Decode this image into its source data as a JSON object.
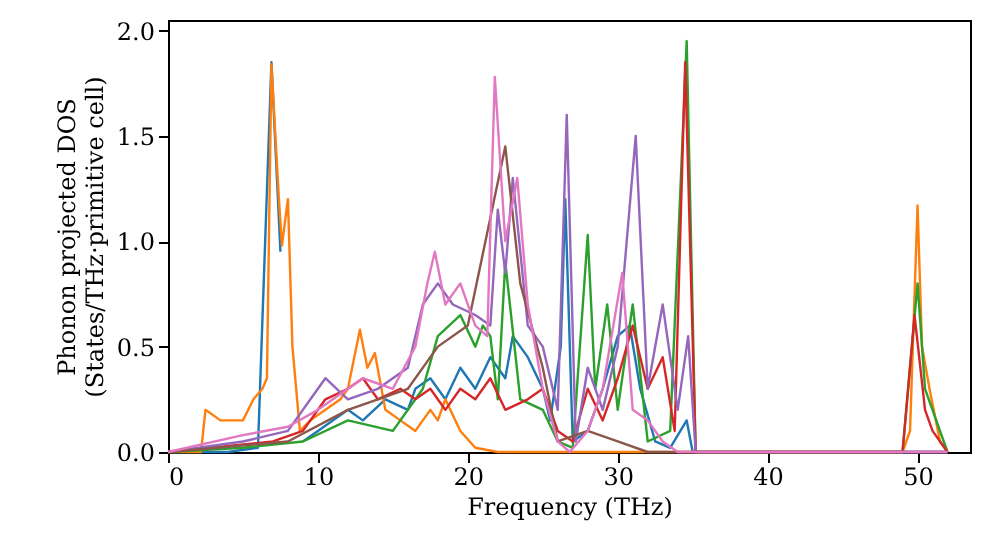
{
  "chart_data": {
    "type": "line",
    "xlabel": "Frequency (THz)",
    "ylabel": "Phonon projected DOS\n(States/THz·primitive cell)",
    "xlim": [
      0,
      53.5
    ],
    "ylim": [
      0,
      2.05
    ],
    "xticks": [
      0,
      10,
      20,
      30,
      40,
      50
    ],
    "yticks": [
      {
        "value": 0,
        "label": "0.0"
      },
      0.5,
      {
        "value": 1,
        "label": "1.0"
      },
      1.5,
      {
        "value": 2,
        "label": "2.0"
      }
    ],
    "grid": false,
    "marker": "none",
    "line_style": "solid",
    "series": [
      {
        "color": "#1f77b4",
        "x": [
          0,
          4,
          6,
          6.9,
          7.5,
          8,
          8.4,
          9,
          10,
          12,
          13,
          14.5,
          16,
          16.5,
          17.5,
          18.5,
          19.5,
          20.5,
          21.5,
          22.5,
          23,
          24,
          25,
          25.5,
          26.2,
          26.5,
          27,
          28,
          29,
          30,
          30.8,
          31.5,
          32.5,
          33.5,
          34.6,
          35,
          52
        ],
        "values": [
          0,
          0,
          0.02,
          1.85,
          0.95,
          null,
          null,
          0.05,
          0.1,
          0.2,
          0.15,
          0.25,
          0.2,
          0.3,
          0.35,
          0.25,
          0.4,
          0.3,
          0.45,
          0.35,
          0.55,
          0.45,
          0.3,
          0.15,
          0.5,
          1.2,
          0.05,
          0.1,
          0.3,
          0.55,
          0.6,
          0.3,
          0.05,
          0.02,
          0.15,
          0,
          0
        ]
      },
      {
        "color": "#ff7f0e",
        "x": [
          0,
          2.2,
          2.5,
          3.5,
          5,
          5.7,
          6.3,
          6.6,
          6.9,
          7.4,
          7.6,
          8,
          8.3,
          8.8,
          9.5,
          10.5,
          11.5,
          12,
          12.8,
          13.3,
          13.8,
          14.5,
          15.5,
          16.5,
          17.5,
          18,
          18.5,
          19.5,
          20.5,
          22,
          49,
          49.5,
          50,
          50.3,
          50.8,
          51.5,
          52
        ],
        "values": [
          0,
          0,
          0.2,
          0.15,
          0.15,
          0.25,
          0.3,
          0.35,
          1.84,
          1.2,
          0.98,
          1.2,
          0.5,
          0.1,
          0.15,
          0.2,
          0.25,
          0.3,
          0.58,
          0.4,
          0.47,
          0.2,
          0.15,
          0.1,
          0.2,
          0.15,
          0.25,
          0.1,
          0.02,
          0,
          0,
          0.1,
          1.17,
          0.5,
          0.3,
          0.05,
          0
        ]
      },
      {
        "color": "#2ca02c",
        "x": [
          0,
          5,
          9,
          12,
          15,
          17,
          18,
          19.5,
          20.5,
          21,
          21.5,
          22,
          22.5,
          23.5,
          25,
          26,
          27,
          28,
          28.5,
          29.3,
          30,
          31,
          32,
          33.5,
          34.6,
          35.2,
          49,
          50,
          50.5,
          52
        ],
        "values": [
          0,
          0.02,
          0.05,
          0.15,
          0.1,
          0.3,
          0.55,
          0.65,
          0.5,
          0.6,
          0.55,
          0.25,
          0.9,
          0.25,
          0.2,
          0.05,
          0.02,
          1.03,
          0.3,
          0.7,
          0.2,
          0.7,
          0.05,
          0.1,
          1.95,
          0,
          0,
          0.8,
          0.3,
          0
        ]
      },
      {
        "color": "#d62728",
        "x": [
          0,
          7,
          9,
          10.5,
          12,
          13,
          14,
          15.5,
          16.5,
          17.5,
          18.5,
          19.5,
          20.5,
          21.5,
          22.5,
          24,
          25,
          26,
          27,
          28,
          29,
          30,
          31,
          32,
          33,
          33.8,
          34.5,
          35.2,
          49,
          49.8,
          50.5,
          51,
          52
        ],
        "values": [
          0,
          0.05,
          0.1,
          0.25,
          0.3,
          0.35,
          0.25,
          0.3,
          0.25,
          0.3,
          0.2,
          0.3,
          0.25,
          0.35,
          0.2,
          0.25,
          0.3,
          0.1,
          0.05,
          0.3,
          0.15,
          0.35,
          0.6,
          0.3,
          0.45,
          0.1,
          1.85,
          0,
          0,
          0.65,
          0.2,
          0.1,
          0
        ]
      },
      {
        "color": "#9467bd",
        "x": [
          0,
          5,
          8,
          9.5,
          10.5,
          12,
          14,
          16,
          17,
          18,
          19,
          20.5,
          21.5,
          22,
          22.5,
          23,
          24,
          25,
          26,
          26.6,
          27.2,
          28,
          29,
          30,
          31.2,
          32,
          33,
          34,
          34.7,
          35.2,
          52
        ],
        "values": [
          0,
          0.05,
          0.1,
          0.25,
          0.35,
          0.25,
          0.3,
          0.4,
          0.7,
          0.8,
          0.7,
          0.65,
          0.6,
          1.15,
          0.85,
          1.3,
          0.6,
          0.5,
          0.2,
          1.6,
          0.05,
          0.4,
          0.2,
          0.5,
          1.5,
          0.3,
          0.7,
          0.2,
          0.55,
          0,
          0
        ]
      },
      {
        "color": "#8c564b",
        "x": [
          0,
          8,
          12,
          16,
          18,
          20,
          22.5,
          23.5,
          25,
          26,
          28,
          30,
          32,
          52
        ],
        "values": [
          0,
          0.05,
          0.2,
          0.3,
          0.5,
          0.6,
          1.45,
          0.8,
          0.4,
          0.05,
          0.1,
          0.05,
          0,
          0
        ]
      },
      {
        "color": "#e377c2",
        "x": [
          0,
          5,
          8,
          10,
          12,
          13,
          15,
          16.5,
          17.3,
          17.8,
          18.5,
          19.5,
          20.5,
          21.3,
          21.8,
          22.5,
          23.3,
          24,
          25,
          26,
          26.8,
          28,
          29,
          30.3,
          31,
          32,
          33,
          34,
          52
        ],
        "values": [
          0,
          0.08,
          0.12,
          0.2,
          0.3,
          0.35,
          0.3,
          0.5,
          0.8,
          0.95,
          0.7,
          0.8,
          0.6,
          0.55,
          1.78,
          1.0,
          1.3,
          0.7,
          0.3,
          0.05,
          0,
          0.1,
          0.3,
          0.85,
          0.2,
          0.15,
          0.05,
          0,
          0
        ]
      }
    ]
  }
}
